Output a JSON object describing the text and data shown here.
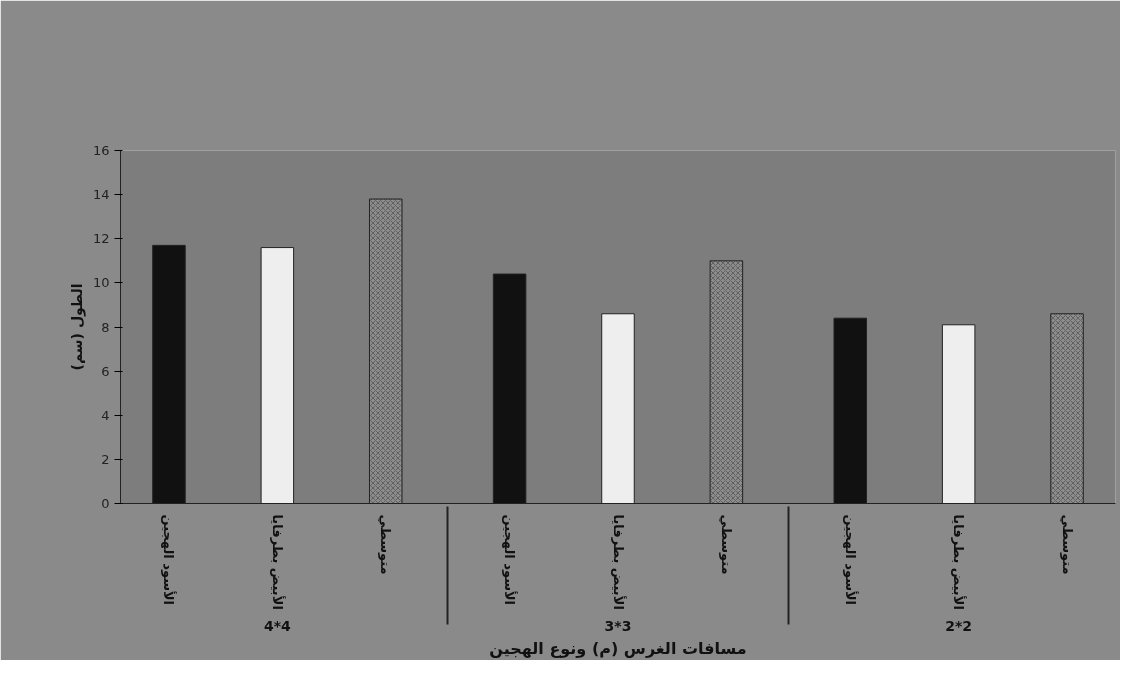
{
  "chart_data": {
    "type": "bar",
    "xlabel": "مسافات الغرس (م) ونوع الهجين",
    "ylabel": "الطول (سم)",
    "categories": [
      "الأسود الهجين",
      "الأبيض بطرفايا",
      "متوسطي",
      "الأسود الهجين",
      "الأبيض بطرفايا",
      "متوسطي",
      "الأسود الهجين",
      "الأبيض بطرفايا",
      "متوسطي"
    ],
    "values": [
      11.7,
      11.6,
      13.8,
      10.4,
      8.6,
      11.0,
      8.4,
      8.1,
      8.6
    ],
    "colors": [
      "#111111",
      "#eeeeee",
      "#8c8c8c",
      "#111111",
      "#eeeeee",
      "#8c8c8c",
      "#111111",
      "#eeeeee",
      "#8c8c8c"
    ],
    "annotations": [
      "4*4",
      "3*3",
      "2*2"
    ],
    "ylim": [
      0,
      16
    ],
    "yticks": [
      0,
      2,
      4,
      6,
      8,
      10,
      12,
      14,
      16
    ],
    "grid": false
  }
}
